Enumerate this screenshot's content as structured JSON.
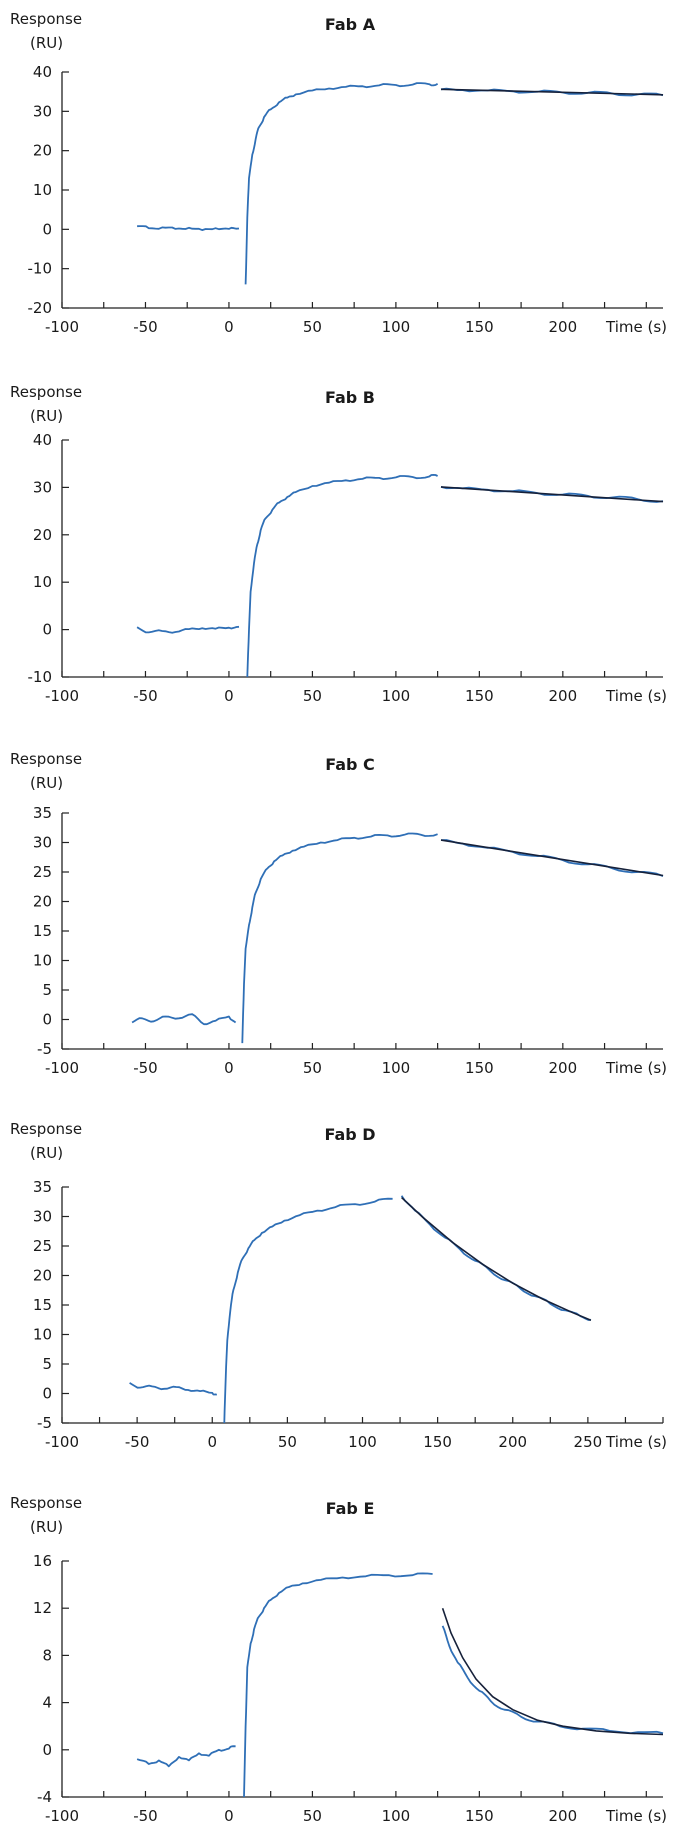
{
  "chart_data": [
    {
      "type": "line",
      "title": "Fab A",
      "ylabel_line1": "Response",
      "ylabel_line2": "(RU)",
      "xlabel": "Time (s)",
      "xlim": [
        -100,
        260
      ],
      "ylim": [
        -20,
        40
      ],
      "xticks": [
        -100,
        -50,
        0,
        50,
        100,
        150,
        200
      ],
      "yticks": [
        -20,
        -10,
        0,
        10,
        20,
        30,
        40
      ],
      "series": [
        {
          "role": "baseline",
          "x": [
            -55,
            -48,
            -40,
            -32,
            -24,
            -16,
            -8,
            0,
            6
          ],
          "y": [
            0.8,
            0.3,
            0.5,
            0.1,
            0.4,
            -0.2,
            0.3,
            0.1,
            0.2
          ]
        },
        {
          "role": "association",
          "x": [
            10,
            11,
            12,
            14,
            16,
            18,
            21,
            25,
            30,
            35,
            40,
            50,
            60,
            70,
            80,
            90,
            100,
            110,
            120,
            125
          ],
          "y": [
            -14,
            3,
            13,
            19,
            23,
            26,
            28.5,
            30.5,
            32.3,
            33.5,
            34.3,
            35.3,
            35.8,
            36.2,
            36.4,
            36.6,
            36.7,
            36.8,
            36.9,
            37
          ]
        },
        {
          "role": "dissociation",
          "x": [
            127,
            140,
            155,
            170,
            185,
            200,
            215,
            230,
            245,
            260
          ],
          "y": [
            35.6,
            35.4,
            35.3,
            35.1,
            35.0,
            34.8,
            34.7,
            34.5,
            34.3,
            34.1
          ]
        },
        {
          "role": "fit",
          "x": [
            127,
            260
          ],
          "y": [
            35.6,
            34.2
          ]
        }
      ]
    },
    {
      "type": "line",
      "title": "Fab B",
      "ylabel_line1": "Response",
      "ylabel_line2": "(RU)",
      "xlabel": "Time (s)",
      "xlim": [
        -100,
        260
      ],
      "ylim": [
        -10,
        40
      ],
      "xticks": [
        -100,
        -50,
        0,
        50,
        100,
        150,
        200
      ],
      "yticks": [
        -10,
        0,
        10,
        20,
        30,
        40
      ],
      "series": [
        {
          "role": "baseline",
          "x": [
            -55,
            -48,
            -40,
            -32,
            -24,
            -16,
            -8,
            0,
            6
          ],
          "y": [
            0.5,
            -0.6,
            -0.3,
            -0.5,
            0.1,
            0.3,
            0.2,
            0.4,
            0.6
          ]
        },
        {
          "role": "association",
          "x": [
            11,
            12,
            13,
            15,
            17,
            19,
            22,
            26,
            30,
            35,
            40,
            50,
            60,
            70,
            80,
            90,
            100,
            110,
            120,
            125
          ],
          "y": [
            -10,
            0,
            8,
            14,
            18,
            21,
            23.5,
            25.3,
            26.8,
            28,
            29,
            30.3,
            31,
            31.5,
            31.8,
            32,
            32.1,
            32.2,
            32.3,
            32.4
          ]
        },
        {
          "role": "dissociation",
          "x": [
            127,
            140,
            155,
            170,
            185,
            200,
            215,
            230,
            245,
            260
          ],
          "y": [
            30.1,
            29.8,
            29.5,
            29.2,
            28.8,
            28.5,
            28.2,
            27.9,
            27.5,
            27.1
          ]
        },
        {
          "role": "fit",
          "x": [
            127,
            260
          ],
          "y": [
            30.1,
            27.0
          ]
        }
      ]
    },
    {
      "type": "line",
      "title": "Fab C",
      "ylabel_line1": "Response",
      "ylabel_line2": "(RU)",
      "xlabel": "Time (s)",
      "xlim": [
        -100,
        260
      ],
      "ylim": [
        -5,
        35
      ],
      "xticks": [
        -100,
        -50,
        0,
        50,
        100,
        150,
        200
      ],
      "yticks": [
        -5,
        0,
        5,
        10,
        15,
        20,
        25,
        30,
        35
      ],
      "series": [
        {
          "role": "baseline",
          "x": [
            -58,
            -52,
            -45,
            -38,
            -30,
            -22,
            -15,
            -8,
            0,
            4
          ],
          "y": [
            -0.5,
            0.2,
            -0.3,
            0.5,
            0.2,
            0.9,
            -0.8,
            -0.2,
            0.5,
            -0.5
          ]
        },
        {
          "role": "association",
          "x": [
            8,
            9,
            10,
            12,
            14,
            16,
            19,
            23,
            27,
            32,
            38,
            45,
            55,
            65,
            75,
            85,
            95,
            105,
            115,
            125
          ],
          "y": [
            -4,
            6,
            12,
            16,
            19,
            21.5,
            23.8,
            25.6,
            26.8,
            27.8,
            28.6,
            29.3,
            30,
            30.4,
            30.8,
            31,
            31.2,
            31.3,
            31.3,
            31.4
          ]
        },
        {
          "role": "dissociation",
          "x": [
            127,
            140,
            155,
            170,
            185,
            200,
            215,
            230,
            245,
            260
          ],
          "y": [
            30.4,
            29.8,
            29.1,
            28.4,
            27.7,
            27.0,
            26.3,
            25.6,
            25.0,
            24.3
          ]
        },
        {
          "role": "fit",
          "x": [
            127,
            260
          ],
          "y": [
            30.4,
            24.4
          ]
        }
      ]
    },
    {
      "type": "line",
      "title": "Fab D",
      "ylabel_line1": "Response",
      "ylabel_line2": "(RU)",
      "xlabel": "Time (s)",
      "xlim": [
        -100,
        300
      ],
      "ylim": [
        -5,
        35
      ],
      "xticks": [
        -100,
        -50,
        0,
        50,
        100,
        150,
        200,
        250
      ],
      "yticks": [
        -5,
        0,
        5,
        10,
        15,
        20,
        25,
        30,
        35
      ],
      "series": [
        {
          "role": "baseline",
          "x": [
            -55,
            -48,
            -40,
            -32,
            -24,
            -16,
            -8,
            0,
            3
          ],
          "y": [
            1.8,
            1.0,
            1.2,
            0.8,
            1.1,
            0.6,
            0.4,
            0.1,
            -0.2
          ]
        },
        {
          "role": "association",
          "x": [
            8,
            9,
            10,
            12,
            14,
            17,
            20,
            24,
            28,
            33,
            40,
            48,
            58,
            70,
            82,
            95,
            108,
            120
          ],
          "y": [
            -5,
            3,
            9,
            14,
            17.5,
            20.5,
            22.8,
            24.6,
            26,
            27.2,
            28.3,
            29.3,
            30.2,
            31,
            31.6,
            32.1,
            32.5,
            33
          ]
        },
        {
          "role": "dissociation",
          "x": [
            126,
            135,
            145,
            155,
            165,
            175,
            185,
            195,
            205,
            215,
            225,
            235,
            245,
            252
          ],
          "y": [
            33.5,
            31,
            28.6,
            26.4,
            24.4,
            22.5,
            20.8,
            19.2,
            17.8,
            16.5,
            15.2,
            14.1,
            13.1,
            12.5
          ]
        },
        {
          "role": "fit",
          "x": [
            126,
            140,
            160,
            180,
            200,
            220,
            240,
            252
          ],
          "y": [
            33.2,
            29.9,
            25.6,
            21.9,
            18.7,
            16.0,
            13.7,
            12.4
          ]
        }
      ]
    },
    {
      "type": "line",
      "title": "Fab E",
      "ylabel_line1": "Response",
      "ylabel_line2": "(RU)",
      "xlabel": "Time (s)",
      "xlim": [
        -100,
        260
      ],
      "ylim": [
        -4,
        16
      ],
      "xticks": [
        -100,
        -50,
        0,
        50,
        100,
        150,
        200
      ],
      "yticks": [
        -4,
        0,
        4,
        8,
        12,
        16
      ],
      "series": [
        {
          "role": "baseline",
          "x": [
            -55,
            -48,
            -42,
            -36,
            -30,
            -24,
            -18,
            -12,
            -6,
            0,
            4
          ],
          "y": [
            -0.8,
            -1.2,
            -0.9,
            -1.4,
            -0.6,
            -0.9,
            -0.3,
            -0.5,
            0.0,
            0.1,
            0.3
          ]
        },
        {
          "role": "association",
          "x": [
            9,
            10,
            11,
            13,
            15,
            18,
            21,
            25,
            30,
            36,
            44,
            55,
            68,
            82,
            96,
            110,
            122
          ],
          "y": [
            -4,
            2,
            7,
            9,
            10.2,
            11.3,
            12,
            12.7,
            13.3,
            13.8,
            14.1,
            14.4,
            14.6,
            14.7,
            14.8,
            14.8,
            14.9
          ]
        },
        {
          "role": "dissociation",
          "x": [
            128,
            132,
            137,
            143,
            150,
            157,
            165,
            175,
            185,
            198,
            212,
            228,
            245,
            260
          ],
          "y": [
            10.5,
            8.8,
            7.4,
            6.1,
            5.0,
            4.1,
            3.4,
            2.8,
            2.4,
            2.0,
            1.8,
            1.6,
            1.5,
            1.4
          ]
        },
        {
          "role": "fit",
          "x": [
            128,
            133,
            140,
            148,
            158,
            170,
            185,
            200,
            220,
            240,
            260
          ],
          "y": [
            12,
            9.9,
            7.8,
            6.0,
            4.5,
            3.4,
            2.5,
            2.0,
            1.6,
            1.4,
            1.3
          ]
        }
      ]
    }
  ],
  "colors": {
    "data": "#2f6fb6",
    "fit": "#16213a",
    "axis": "#222222"
  }
}
